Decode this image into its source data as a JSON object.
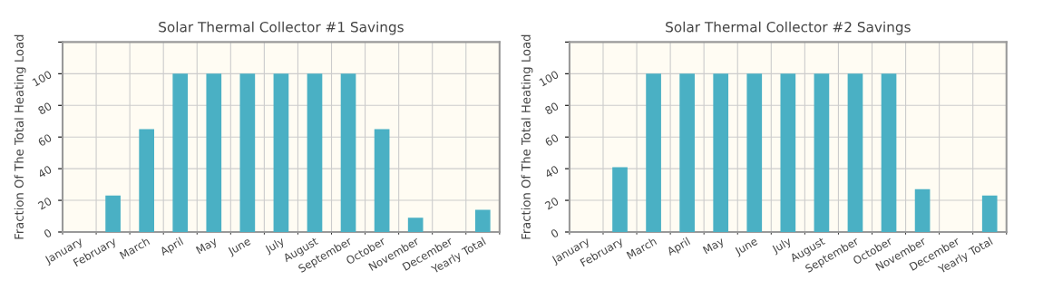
{
  "chart_data": [
    {
      "type": "bar",
      "title": "Solar Thermal Collector #1 Savings",
      "ylabel": "Fraction Of The Total Heating Load",
      "categories": [
        "January",
        "February",
        "March",
        "April",
        "May",
        "June",
        "July",
        "August",
        "September",
        "October",
        "November",
        "December",
        "Yearly Total"
      ],
      "values": [
        0,
        23,
        65,
        100,
        100,
        100,
        100,
        100,
        100,
        65,
        9,
        0,
        14
      ],
      "color": "#4ab0c4",
      "ylim": [
        0,
        120
      ],
      "yticks": [
        0,
        20,
        40,
        60,
        80,
        100,
        {
          "value": 120,
          "label": null
        }
      ],
      "grid": true
    },
    {
      "type": "bar",
      "title": "Solar Thermal Collector #2 Savings",
      "ylabel": "Fraction Of The Total Heating Load",
      "categories": [
        "January",
        "February",
        "March",
        "April",
        "May",
        "June",
        "July",
        "August",
        "September",
        "October",
        "November",
        "December",
        "Yearly Total"
      ],
      "values": [
        0,
        41,
        100,
        100,
        100,
        100,
        100,
        100,
        100,
        100,
        27,
        0,
        23
      ],
      "color": "#4ab0c4",
      "ylim": [
        0,
        120
      ],
      "yticks": [
        0,
        20,
        40,
        60,
        80,
        100,
        {
          "value": 120,
          "label": null
        }
      ],
      "grid": true
    }
  ]
}
